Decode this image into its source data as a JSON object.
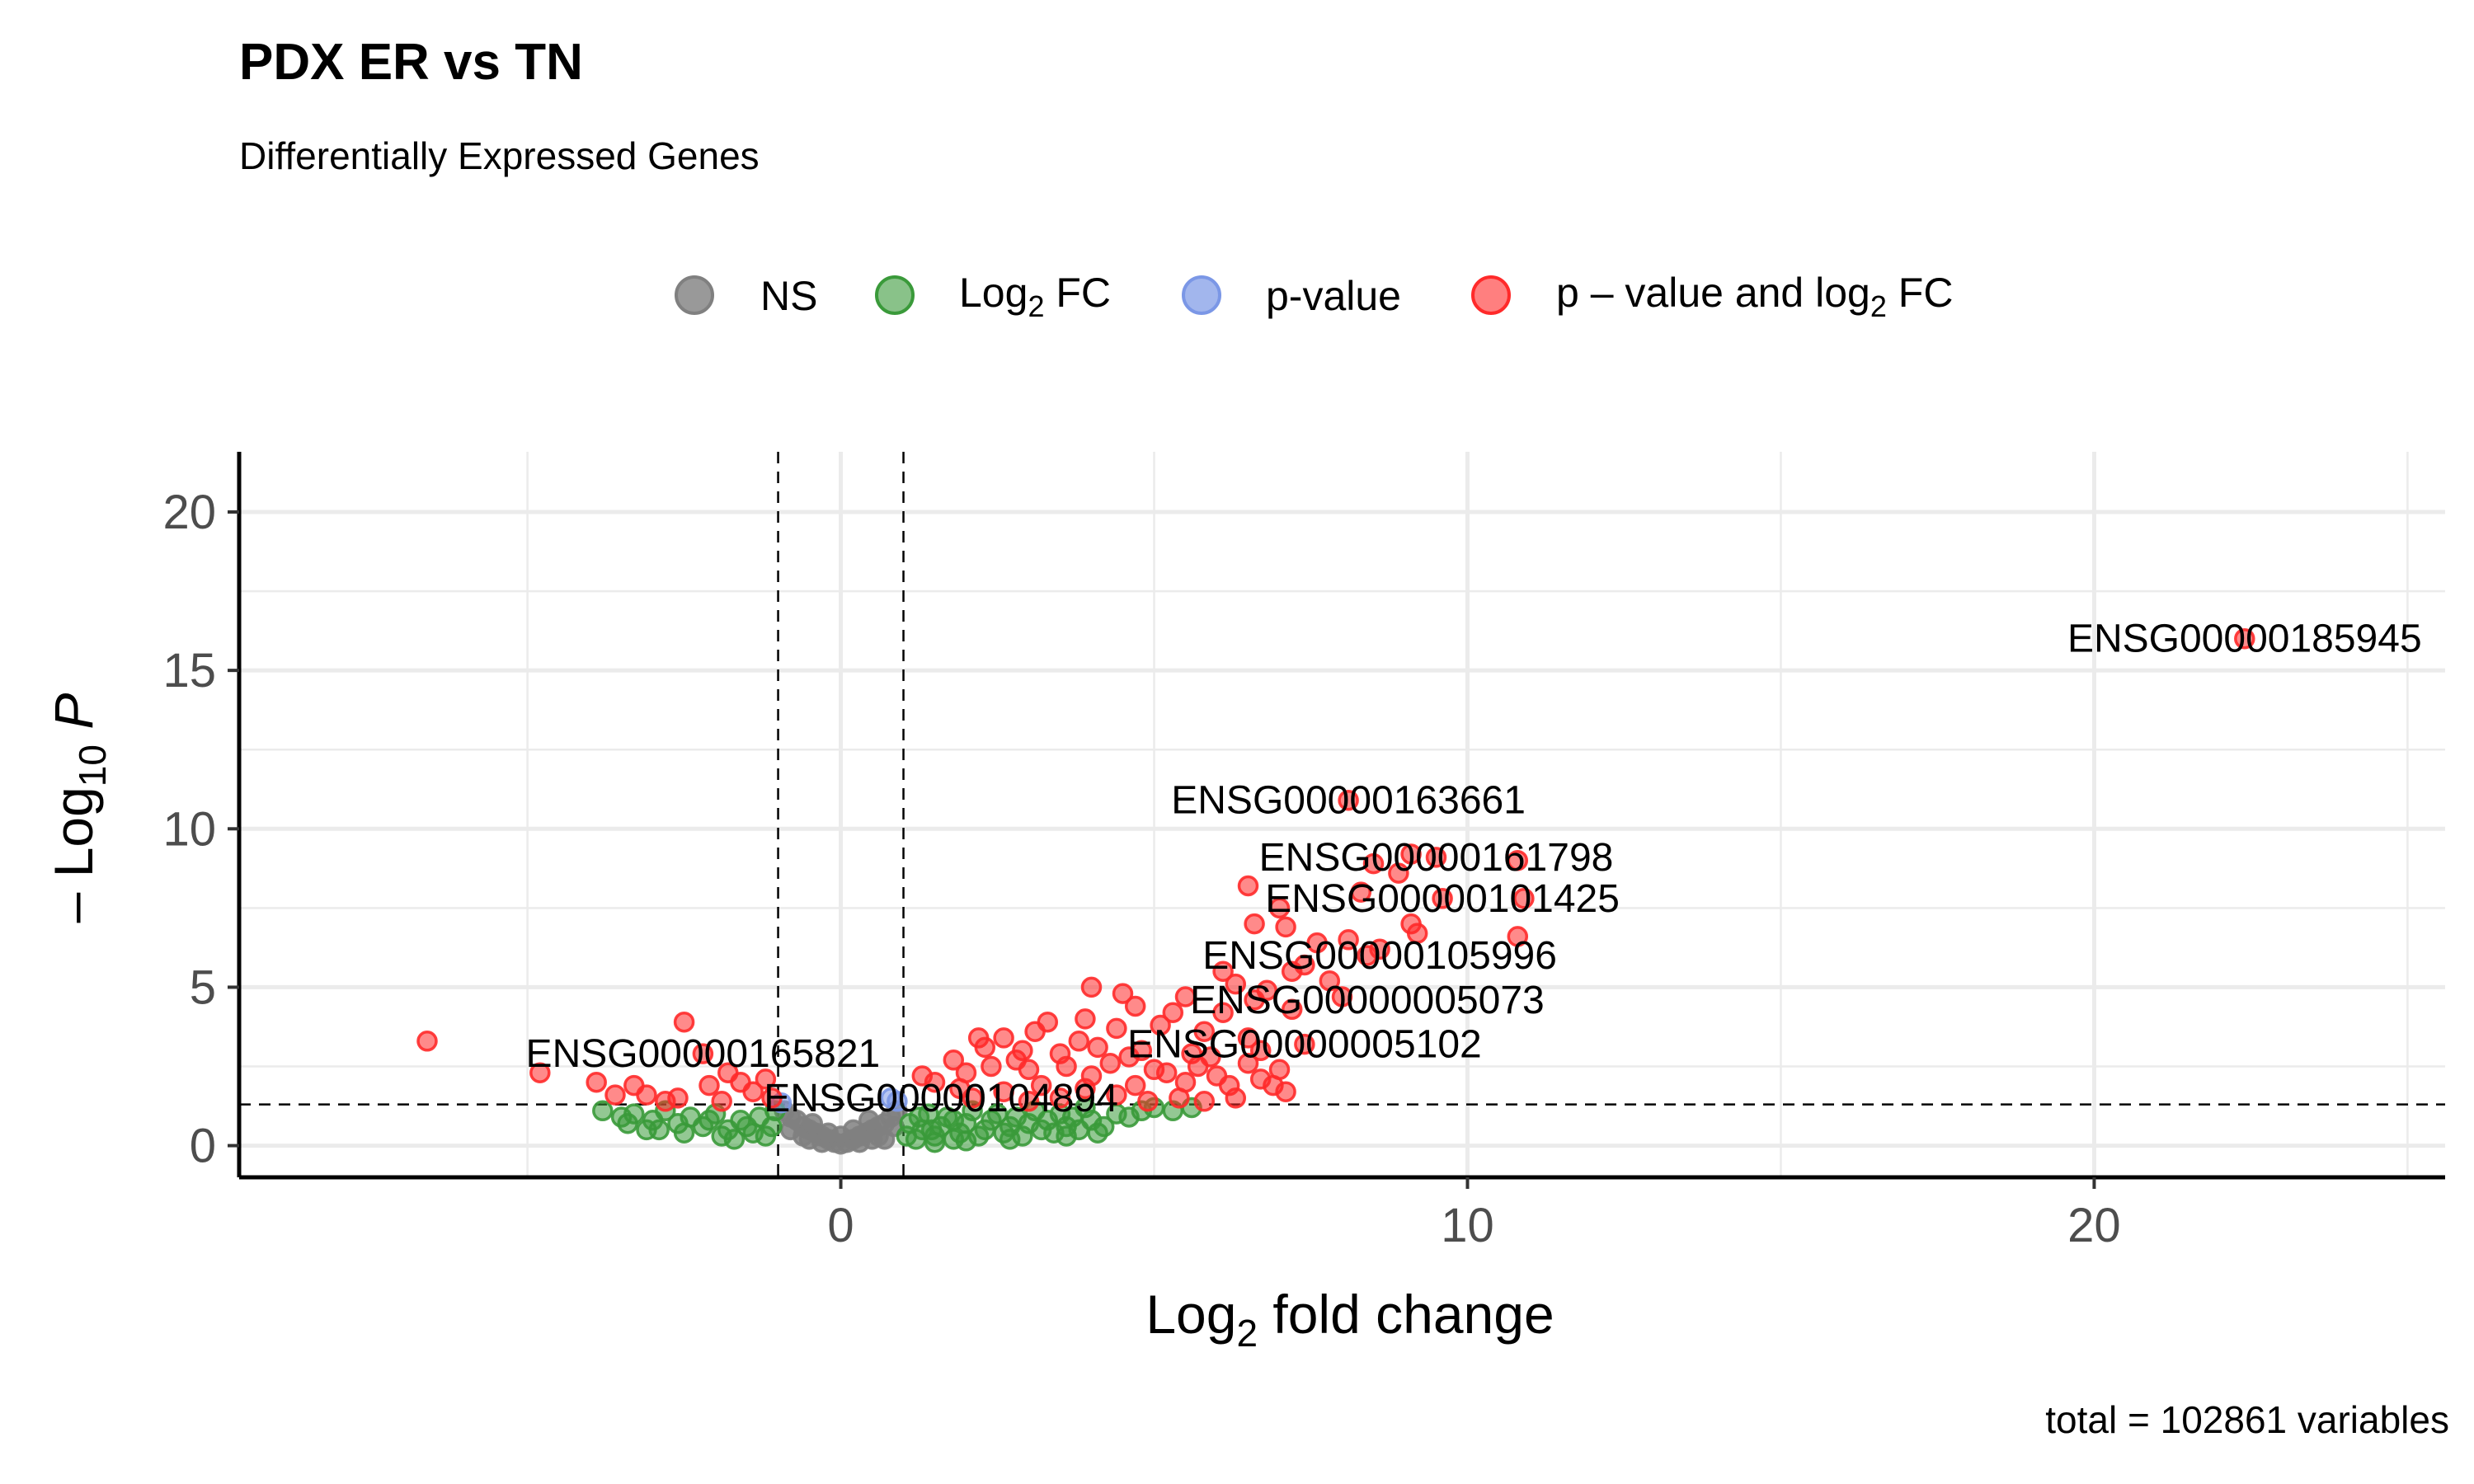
{
  "title": "PDX ER vs TN",
  "subtitle": "Differentially Expressed Genes",
  "caption": "total = 102861 variables",
  "colors": {
    "NS": "#808080",
    "FC": "#3a9a3a",
    "P": "#7b97e6",
    "FC_P": "#ff2a2a"
  },
  "legend": {
    "items": [
      {
        "key": "NS",
        "label": "NS",
        "sub": "",
        "post": ""
      },
      {
        "key": "FC",
        "label": "Log",
        "sub": "2",
        "post": " FC"
      },
      {
        "key": "P",
        "label": "p-value",
        "sub": "",
        "post": ""
      },
      {
        "key": "FC_P",
        "label": "p – value and log",
        "sub": "2",
        "post": " FC"
      }
    ]
  },
  "chart_data": {
    "type": "scatter",
    "title": "PDX ER vs TN",
    "subtitle": "Differentially Expressed Genes",
    "xlabel": {
      "main": "Log",
      "sub": "2",
      "post": " fold change"
    },
    "ylabel": {
      "pre": "– Log",
      "sub": "10",
      "post": " P"
    },
    "xlim": [
      -9.6,
      25.6
    ],
    "ylim": [
      -1.0,
      21.9
    ],
    "xticks": [
      0,
      10,
      20
    ],
    "yticks": [
      0,
      5,
      10,
      15,
      20
    ],
    "grid": true,
    "legend_position": "top",
    "cutoffs": {
      "fc": [
        -1,
        1
      ],
      "p_line": 1.3
    },
    "labels": [
      {
        "text": "ENSG00000185945",
        "x": 22.4,
        "y": 16.0
      },
      {
        "text": "ENSG00000163661",
        "x": 8.1,
        "y": 10.9
      },
      {
        "text": "ENSG00000161798",
        "x": 9.5,
        "y": 9.1
      },
      {
        "text": "ENSG00000101425",
        "x": 9.6,
        "y": 7.8
      },
      {
        "text": "ENSG00000105996",
        "x": 8.6,
        "y": 6.0
      },
      {
        "text": "ENSG00000005073",
        "x": 8.4,
        "y": 4.6
      },
      {
        "text": "ENSG00000005102",
        "x": 7.4,
        "y": 3.2
      },
      {
        "text": "ENSG00000165821",
        "x": -2.2,
        "y": 2.9
      },
      {
        "text": "ENSG00000104894",
        "x": 1.6,
        "y": 1.5
      }
    ],
    "series": [
      {
        "name": "NS",
        "points": [
          [
            -0.9,
            1.1
          ],
          [
            -0.8,
            0.9
          ],
          [
            -0.7,
            0.8
          ],
          [
            -0.6,
            0.6
          ],
          [
            -0.5,
            0.5
          ],
          [
            -0.4,
            0.4
          ],
          [
            -0.3,
            0.3
          ],
          [
            -0.2,
            0.2
          ],
          [
            -0.1,
            0.1
          ],
          [
            0,
            0.05
          ],
          [
            0.1,
            0.1
          ],
          [
            0.2,
            0.2
          ],
          [
            0.3,
            0.3
          ],
          [
            0.4,
            0.4
          ],
          [
            0.5,
            0.5
          ],
          [
            0.6,
            0.6
          ],
          [
            0.7,
            0.7
          ],
          [
            0.8,
            0.9
          ],
          [
            0.9,
            1.1
          ],
          [
            -0.6,
            0.3
          ],
          [
            -0.3,
            0.1
          ],
          [
            0.3,
            0.1
          ],
          [
            0.6,
            0.3
          ],
          [
            0,
            0.3
          ],
          [
            -0.5,
            0.2
          ],
          [
            0.5,
            0.2
          ],
          [
            0.2,
            0.5
          ],
          [
            -0.2,
            0.4
          ],
          [
            0.7,
            0.2
          ],
          [
            -0.8,
            0.5
          ],
          [
            0.85,
            0.6
          ],
          [
            0.45,
            0.8
          ],
          [
            -0.45,
            0.7
          ]
        ]
      },
      {
        "name": "Log2 FC",
        "points": [
          [
            -3.8,
            1.1
          ],
          [
            -3.5,
            0.9
          ],
          [
            -3.3,
            1.0
          ],
          [
            -3.0,
            0.8
          ],
          [
            -2.8,
            1.1
          ],
          [
            -2.6,
            0.7
          ],
          [
            -2.4,
            0.9
          ],
          [
            -2.2,
            0.6
          ],
          [
            -2.0,
            1.0
          ],
          [
            -1.8,
            0.5
          ],
          [
            -1.6,
            0.8
          ],
          [
            -1.4,
            0.4
          ],
          [
            -1.3,
            0.9
          ],
          [
            -1.2,
            0.3
          ],
          [
            -1.1,
            0.6
          ],
          [
            -1.05,
            1.1
          ],
          [
            -3.4,
            0.7
          ],
          [
            -2.9,
            0.5
          ],
          [
            -2.5,
            0.4
          ],
          [
            -1.9,
            0.3
          ],
          [
            -1.7,
            0.2
          ],
          [
            -1.5,
            0.6
          ],
          [
            -3.1,
            0.5
          ],
          [
            -2.1,
            0.8
          ],
          [
            1.05,
            0.3
          ],
          [
            1.1,
            0.7
          ],
          [
            1.2,
            0.2
          ],
          [
            1.3,
            0.5
          ],
          [
            1.4,
            1.0
          ],
          [
            1.5,
            0.3
          ],
          [
            1.6,
            0.6
          ],
          [
            1.7,
            0.9
          ],
          [
            1.8,
            0.2
          ],
          [
            1.9,
            0.4
          ],
          [
            2.0,
            0.7
          ],
          [
            2.1,
            1.1
          ],
          [
            2.2,
            0.3
          ],
          [
            2.3,
            0.5
          ],
          [
            2.4,
            0.8
          ],
          [
            2.5,
            1.0
          ],
          [
            2.6,
            0.4
          ],
          [
            2.7,
            0.6
          ],
          [
            2.8,
            0.9
          ],
          [
            2.9,
            0.3
          ],
          [
            3.0,
            0.7
          ],
          [
            3.1,
            1.1
          ],
          [
            3.2,
            0.5
          ],
          [
            3.3,
            0.8
          ],
          [
            3.4,
            0.4
          ],
          [
            3.5,
            1.0
          ],
          [
            3.6,
            0.6
          ],
          [
            3.7,
            0.9
          ],
          [
            3.8,
            0.5
          ],
          [
            3.9,
            1.2
          ],
          [
            4.0,
            0.8
          ],
          [
            4.2,
            0.6
          ],
          [
            4.4,
            1.0
          ],
          [
            4.6,
            0.9
          ],
          [
            4.8,
            1.1
          ],
          [
            5.0,
            1.2
          ],
          [
            5.3,
            1.1
          ],
          [
            5.6,
            1.2
          ],
          [
            4.1,
            0.4
          ],
          [
            3.6,
            0.3
          ],
          [
            2.7,
            0.2
          ],
          [
            2.0,
            0.15
          ],
          [
            1.5,
            0.1
          ],
          [
            1.25,
            0.9
          ],
          [
            1.45,
            0.5
          ],
          [
            1.8,
            0.8
          ]
        ]
      },
      {
        "name": "p-value",
        "points": [
          [
            0.8,
            1.5
          ],
          [
            0.9,
            1.4
          ],
          [
            -0.95,
            1.35
          ]
        ]
      },
      {
        "name": "p - value and log2 FC",
        "points": [
          [
            22.4,
            16.0
          ],
          [
            8.1,
            10.9
          ],
          [
            9.5,
            9.1
          ],
          [
            10.8,
            9.0
          ],
          [
            9.1,
            9.2
          ],
          [
            8.5,
            8.9
          ],
          [
            8.9,
            8.6
          ],
          [
            6.5,
            8.2
          ],
          [
            10.9,
            7.8
          ],
          [
            8.3,
            8.0
          ],
          [
            9.6,
            7.8
          ],
          [
            7.0,
            7.5
          ],
          [
            6.6,
            7.0
          ],
          [
            7.1,
            6.9
          ],
          [
            9.1,
            7.0
          ],
          [
            9.2,
            6.7
          ],
          [
            10.8,
            6.6
          ],
          [
            8.6,
            6.2
          ],
          [
            8.1,
            6.5
          ],
          [
            7.6,
            6.4
          ],
          [
            8.4,
            6.0
          ],
          [
            7.4,
            5.7
          ],
          [
            7.8,
            5.2
          ],
          [
            6.1,
            5.5
          ],
          [
            7.2,
            5.5
          ],
          [
            6.3,
            5.1
          ],
          [
            6.8,
            4.9
          ],
          [
            8.0,
            4.7
          ],
          [
            6.6,
            4.6
          ],
          [
            5.5,
            4.7
          ],
          [
            4.5,
            4.8
          ],
          [
            4.0,
            5.0
          ],
          [
            7.2,
            4.3
          ],
          [
            6.1,
            4.2
          ],
          [
            5.3,
            4.2
          ],
          [
            4.7,
            4.4
          ],
          [
            3.9,
            4.0
          ],
          [
            3.3,
            3.9
          ],
          [
            2.2,
            3.4
          ],
          [
            2.6,
            3.4
          ],
          [
            3.1,
            3.6
          ],
          [
            4.4,
            3.7
          ],
          [
            5.1,
            3.8
          ],
          [
            5.8,
            3.6
          ],
          [
            6.5,
            3.4
          ],
          [
            7.4,
            3.2
          ],
          [
            6.7,
            3.0
          ],
          [
            5.6,
            2.9
          ],
          [
            4.8,
            3.0
          ],
          [
            4.1,
            3.1
          ],
          [
            3.5,
            2.9
          ],
          [
            2.9,
            3.0
          ],
          [
            2.3,
            3.1
          ],
          [
            1.8,
            2.7
          ],
          [
            2.4,
            2.5
          ],
          [
            3.0,
            2.4
          ],
          [
            3.6,
            2.5
          ],
          [
            4.3,
            2.6
          ],
          [
            5.0,
            2.4
          ],
          [
            5.7,
            2.5
          ],
          [
            6.5,
            2.6
          ],
          [
            7.0,
            2.4
          ],
          [
            6.9,
            1.9
          ],
          [
            6.2,
            1.9
          ],
          [
            5.5,
            2.0
          ],
          [
            4.7,
            1.9
          ],
          [
            3.9,
            1.8
          ],
          [
            3.2,
            1.9
          ],
          [
            2.6,
            1.7
          ],
          [
            1.9,
            1.8
          ],
          [
            1.5,
            2.0
          ],
          [
            1.3,
            2.2
          ],
          [
            2.0,
            2.3
          ],
          [
            4.0,
            2.2
          ],
          [
            5.2,
            2.3
          ],
          [
            6.0,
            2.2
          ],
          [
            6.7,
            2.1
          ],
          [
            5.9,
            2.8
          ],
          [
            4.6,
            2.8
          ],
          [
            3.8,
            3.3
          ],
          [
            2.8,
            2.7
          ],
          [
            2.1,
            1.5
          ],
          [
            3.0,
            1.4
          ],
          [
            4.4,
            1.6
          ],
          [
            5.4,
            1.5
          ],
          [
            6.3,
            1.5
          ],
          [
            7.1,
            1.7
          ],
          [
            3.5,
            1.5
          ],
          [
            4.9,
            1.4
          ],
          [
            5.8,
            1.4
          ],
          [
            -6.6,
            3.3
          ],
          [
            -4.8,
            2.3
          ],
          [
            -2.5,
            3.9
          ],
          [
            -2.2,
            2.9
          ],
          [
            -3.9,
            2.0
          ],
          [
            -3.3,
            1.9
          ],
          [
            -3.1,
            1.6
          ],
          [
            -2.6,
            1.5
          ],
          [
            -2.1,
            1.9
          ],
          [
            -1.9,
            1.4
          ],
          [
            -1.6,
            2.0
          ],
          [
            -1.4,
            1.7
          ],
          [
            -1.2,
            2.1
          ],
          [
            -1.1,
            1.5
          ],
          [
            -2.8,
            1.4
          ],
          [
            -3.6,
            1.6
          ],
          [
            -1.8,
            2.3
          ]
        ]
      }
    ]
  }
}
